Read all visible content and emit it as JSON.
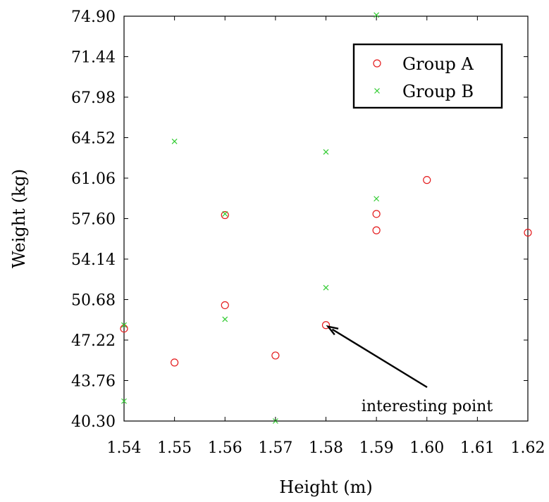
{
  "chart_data": {
    "type": "scatter",
    "title": "",
    "xlabel": "Height (m)",
    "ylabel": "Weight (kg)",
    "xlim": [
      1.54,
      1.62
    ],
    "ylim": [
      40.3,
      74.9
    ],
    "xticks": [
      "1.54",
      "1.55",
      "1.56",
      "1.57",
      "1.58",
      "1.59",
      "1.60",
      "1.61",
      "1.62"
    ],
    "yticks": [
      "40.30",
      "43.76",
      "47.22",
      "50.68",
      "54.14",
      "57.60",
      "61.06",
      "64.52",
      "67.98",
      "71.44",
      "74.90"
    ],
    "grid": false,
    "legend_position": "top-right",
    "series": [
      {
        "name": "Group A",
        "marker": "circle",
        "color": "#e41a1c",
        "points": [
          {
            "x": 1.54,
            "y": 48.2
          },
          {
            "x": 1.55,
            "y": 45.3
          },
          {
            "x": 1.56,
            "y": 50.2
          },
          {
            "x": 1.56,
            "y": 57.9
          },
          {
            "x": 1.57,
            "y": 45.9
          },
          {
            "x": 1.58,
            "y": 48.5
          },
          {
            "x": 1.59,
            "y": 56.6
          },
          {
            "x": 1.59,
            "y": 58.0
          },
          {
            "x": 1.6,
            "y": 60.9
          },
          {
            "x": 1.62,
            "y": 56.4
          }
        ]
      },
      {
        "name": "Group B",
        "marker": "cross",
        "color": "#33cc33",
        "points": [
          {
            "x": 1.54,
            "y": 48.5
          },
          {
            "x": 1.54,
            "y": 42.0
          },
          {
            "x": 1.55,
            "y": 64.2
          },
          {
            "x": 1.56,
            "y": 58.0
          },
          {
            "x": 1.56,
            "y": 49.0
          },
          {
            "x": 1.57,
            "y": 40.3
          },
          {
            "x": 1.58,
            "y": 63.3
          },
          {
            "x": 1.58,
            "y": 51.7
          },
          {
            "x": 1.59,
            "y": 59.3
          },
          {
            "x": 1.59,
            "y": 75.0
          }
        ]
      }
    ],
    "annotations": [
      {
        "text": "interesting point",
        "target": {
          "x": 1.58,
          "y": 48.5
        }
      }
    ]
  }
}
